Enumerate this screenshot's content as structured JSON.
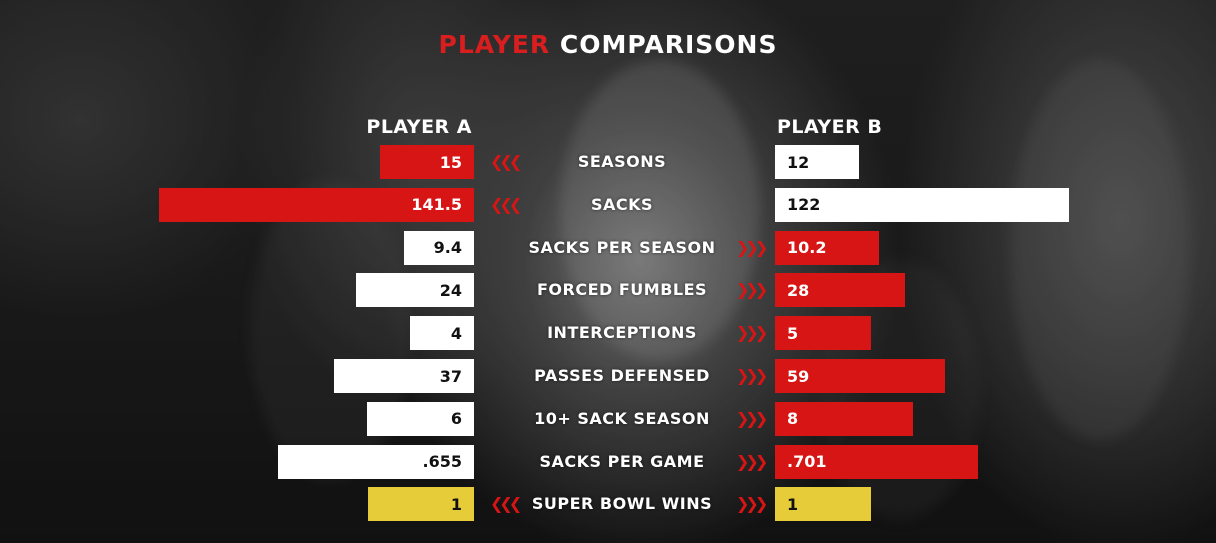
{
  "header": {
    "title_accent": "PLAYER",
    "title_rest": "COMPARISONS",
    "player_a": "PLAYER A",
    "player_b": "PLAYER B"
  },
  "colors": {
    "accent": "#d81515",
    "neutral": "#ffffff",
    "highlight": "#e7cc3a"
  },
  "chart_data": {
    "type": "bar",
    "orientation": "horizontal-diverging",
    "title": "PLAYER COMPARISONS",
    "series": [
      {
        "name": "PLAYER A",
        "labels": [
          "15",
          "141.5",
          "9.4",
          "24",
          "4",
          "37",
          "6",
          ".655",
          "1"
        ]
      },
      {
        "name": "PLAYER B",
        "labels": [
          "12",
          "122",
          "10.2",
          "28",
          "5",
          "59",
          "8",
          ".701",
          "1"
        ]
      }
    ],
    "rows": [
      {
        "label": "SEASONS",
        "a": "15",
        "b": "12",
        "a_pct": 0.93,
        "b_pct": 0.8,
        "a_color": "red",
        "b_color": "white",
        "chevron": "left"
      },
      {
        "label": "SACKS",
        "a": "141.5",
        "b": "122",
        "a_pct": 1.0,
        "b_pct": 1.0,
        "a_color": "red",
        "b_color": "white",
        "chevron": "left"
      },
      {
        "label": "SACKS PER SEASON",
        "a": "9.4",
        "b": "10.2",
        "a_pct": 0.66,
        "b_pct": 1.0,
        "a_color": "white",
        "b_color": "red",
        "chevron": "right"
      },
      {
        "label": "FORCED FUMBLES",
        "a": "24",
        "b": "28",
        "a_pct": 0.88,
        "b_pct": 1.0,
        "a_color": "white",
        "b_color": "red",
        "chevron": "right"
      },
      {
        "label": "INTERCEPTIONS",
        "a": "4",
        "b": "5",
        "a_pct": 0.68,
        "b_pct": 1.0,
        "a_color": "white",
        "b_color": "red",
        "chevron": "right"
      },
      {
        "label": "PASSES DEFENSED",
        "a": "37",
        "b": "59",
        "a_pct": 0.62,
        "b_pct": 1.0,
        "a_color": "white",
        "b_color": "red",
        "chevron": "right"
      },
      {
        "label": "10+ SACK SEASON",
        "a": "6",
        "b": "8",
        "a_pct": 0.75,
        "b_pct": 1.0,
        "a_color": "white",
        "b_color": "red",
        "chevron": "right"
      },
      {
        "label": "SACKS PER GAME",
        "a": ".655",
        "b": ".701",
        "a_pct": 0.96,
        "b_pct": 1.0,
        "a_color": "white",
        "b_color": "red",
        "chevron": "right"
      },
      {
        "label": "SUPER BOWL WINS",
        "a": "1",
        "b": "1",
        "a_pct": 1.0,
        "b_pct": 1.0,
        "a_color": "gold",
        "b_color": "gold",
        "chevron": "both"
      }
    ]
  }
}
